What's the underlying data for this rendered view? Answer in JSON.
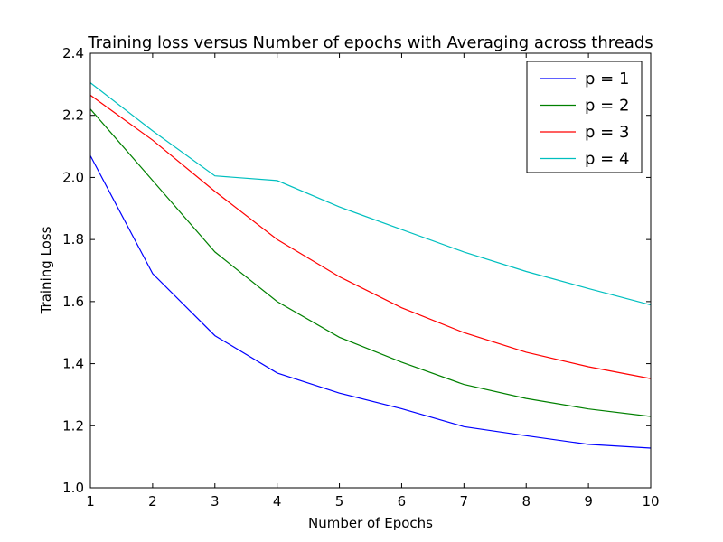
{
  "chart_data": {
    "type": "line",
    "title": "Training loss versus Number of epochs with Averaging across threads",
    "xlabel": "Number of Epochs",
    "ylabel": "Training Loss",
    "xlim": [
      1,
      10
    ],
    "ylim": [
      1.0,
      2.4
    ],
    "xticks": [
      1,
      2,
      3,
      4,
      5,
      6,
      7,
      8,
      9,
      10
    ],
    "yticks": [
      1.0,
      1.2,
      1.4,
      1.6,
      1.8,
      2.0,
      2.2,
      2.4
    ],
    "ytick_labels": [
      "1.0",
      "1.2",
      "1.4",
      "1.6",
      "1.8",
      "2.0",
      "2.2",
      "2.4"
    ],
    "grid": false,
    "legend_position": "top-right",
    "x": [
      1,
      2,
      3,
      4,
      5,
      6,
      7,
      8,
      9,
      10
    ],
    "series": [
      {
        "name": "p = 1",
        "color": "#0000ff",
        "values": [
          2.07,
          1.69,
          1.49,
          1.37,
          1.305,
          1.255,
          1.197,
          1.168,
          1.14,
          1.128
        ]
      },
      {
        "name": "p = 2",
        "color": "#008000",
        "values": [
          2.22,
          1.99,
          1.76,
          1.6,
          1.485,
          1.405,
          1.333,
          1.288,
          1.254,
          1.23
        ]
      },
      {
        "name": "p = 3",
        "color": "#ff0000",
        "values": [
          2.265,
          2.12,
          1.955,
          1.8,
          1.68,
          1.58,
          1.5,
          1.437,
          1.39,
          1.352
        ]
      },
      {
        "name": "p = 4",
        "color": "#00bfbf",
        "values": [
          2.305,
          2.15,
          2.005,
          1.99,
          1.905,
          1.832,
          1.76,
          1.697,
          1.642,
          1.589
        ]
      }
    ]
  }
}
